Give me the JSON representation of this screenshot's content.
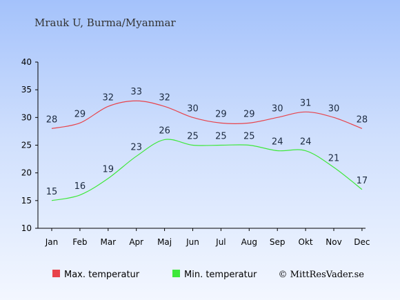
{
  "chart_data": {
    "type": "line",
    "title": "Mrauk U, Burma/Myanmar",
    "xlabel": "",
    "ylabel": "",
    "categories": [
      "Jan",
      "Feb",
      "Mar",
      "Apr",
      "Maj",
      "Jun",
      "Jul",
      "Aug",
      "Sep",
      "Okt",
      "Nov",
      "Dec"
    ],
    "ylim": [
      10,
      40
    ],
    "yticks": [
      10,
      15,
      20,
      25,
      30,
      35,
      40
    ],
    "grid": false,
    "legend_position": "bottom",
    "series": [
      {
        "name": "Max. temperatur",
        "color": "#e8434a",
        "values": [
          28,
          29,
          32,
          33,
          32,
          30,
          29,
          29,
          30,
          31,
          30,
          28
        ]
      },
      {
        "name": "Min. temperatur",
        "color": "#3ee83a",
        "values": [
          15,
          16,
          19,
          23,
          26,
          25,
          25,
          25,
          24,
          24,
          21,
          17
        ]
      }
    ],
    "credit": "© MittResVader.se"
  }
}
